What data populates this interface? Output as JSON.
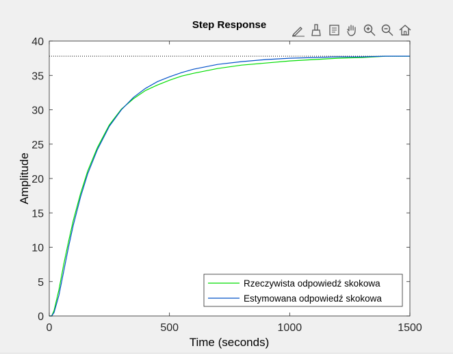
{
  "toolbar": {
    "icons": [
      "edit-plot-icon",
      "brush-icon",
      "data-tips-icon",
      "pan-hand-icon",
      "zoom-in-icon",
      "zoom-out-icon",
      "home-restore-icon"
    ]
  },
  "colors": {
    "figure_bg": "#f0f0f0",
    "axes_bg": "#ffffff",
    "series_measured": "#00dd00",
    "series_estimated": "#0050c8",
    "steady_state_line": "#000000",
    "tick_text": "#262626"
  },
  "chart_data": {
    "type": "line",
    "title": "Step Response",
    "xlabel": "Time (seconds)",
    "ylabel": "Amplitude",
    "xlim": [
      0,
      1500
    ],
    "ylim": [
      0,
      40
    ],
    "xticks": [
      0,
      500,
      1000,
      1500
    ],
    "yticks": [
      0,
      5,
      10,
      15,
      20,
      25,
      30,
      35,
      40
    ],
    "grid": false,
    "legend_position": "bottom-right",
    "steady_state": 37.8,
    "series": [
      {
        "name": "Rzeczywista odpowiedź skokowa",
        "color": "#00dd00",
        "points": [
          [
            0,
            0
          ],
          [
            10,
            0
          ],
          [
            20,
            0.8
          ],
          [
            40,
            3.8
          ],
          [
            60,
            7.5
          ],
          [
            80,
            10.8
          ],
          [
            100,
            13.9
          ],
          [
            130,
            17.8
          ],
          [
            160,
            21.1
          ],
          [
            200,
            24.5
          ],
          [
            250,
            27.8
          ],
          [
            300,
            30.1
          ],
          [
            350,
            31.6
          ],
          [
            400,
            32.8
          ],
          [
            450,
            33.6
          ],
          [
            500,
            34.3
          ],
          [
            550,
            34.9
          ],
          [
            600,
            35.3
          ],
          [
            700,
            36.0
          ],
          [
            800,
            36.5
          ],
          [
            900,
            36.8
          ],
          [
            1000,
            37.1
          ],
          [
            1100,
            37.3
          ],
          [
            1200,
            37.5
          ],
          [
            1300,
            37.6
          ],
          [
            1400,
            37.8
          ],
          [
            1500,
            37.8
          ]
        ]
      },
      {
        "name": "Estymowana odpowiedź skokowa",
        "color": "#0050c8",
        "points": [
          [
            0,
            0
          ],
          [
            10,
            0
          ],
          [
            20,
            0.5
          ],
          [
            40,
            3.0
          ],
          [
            60,
            6.5
          ],
          [
            80,
            10.0
          ],
          [
            100,
            13.2
          ],
          [
            130,
            17.3
          ],
          [
            160,
            20.7
          ],
          [
            200,
            24.2
          ],
          [
            250,
            27.6
          ],
          [
            300,
            30.0
          ],
          [
            350,
            31.8
          ],
          [
            400,
            33.1
          ],
          [
            450,
            34.1
          ],
          [
            500,
            34.8
          ],
          [
            550,
            35.4
          ],
          [
            600,
            35.9
          ],
          [
            700,
            36.6
          ],
          [
            800,
            37.0
          ],
          [
            900,
            37.3
          ],
          [
            1000,
            37.5
          ],
          [
            1100,
            37.6
          ],
          [
            1200,
            37.7
          ],
          [
            1300,
            37.7
          ],
          [
            1400,
            37.8
          ],
          [
            1500,
            37.8
          ]
        ]
      }
    ]
  }
}
